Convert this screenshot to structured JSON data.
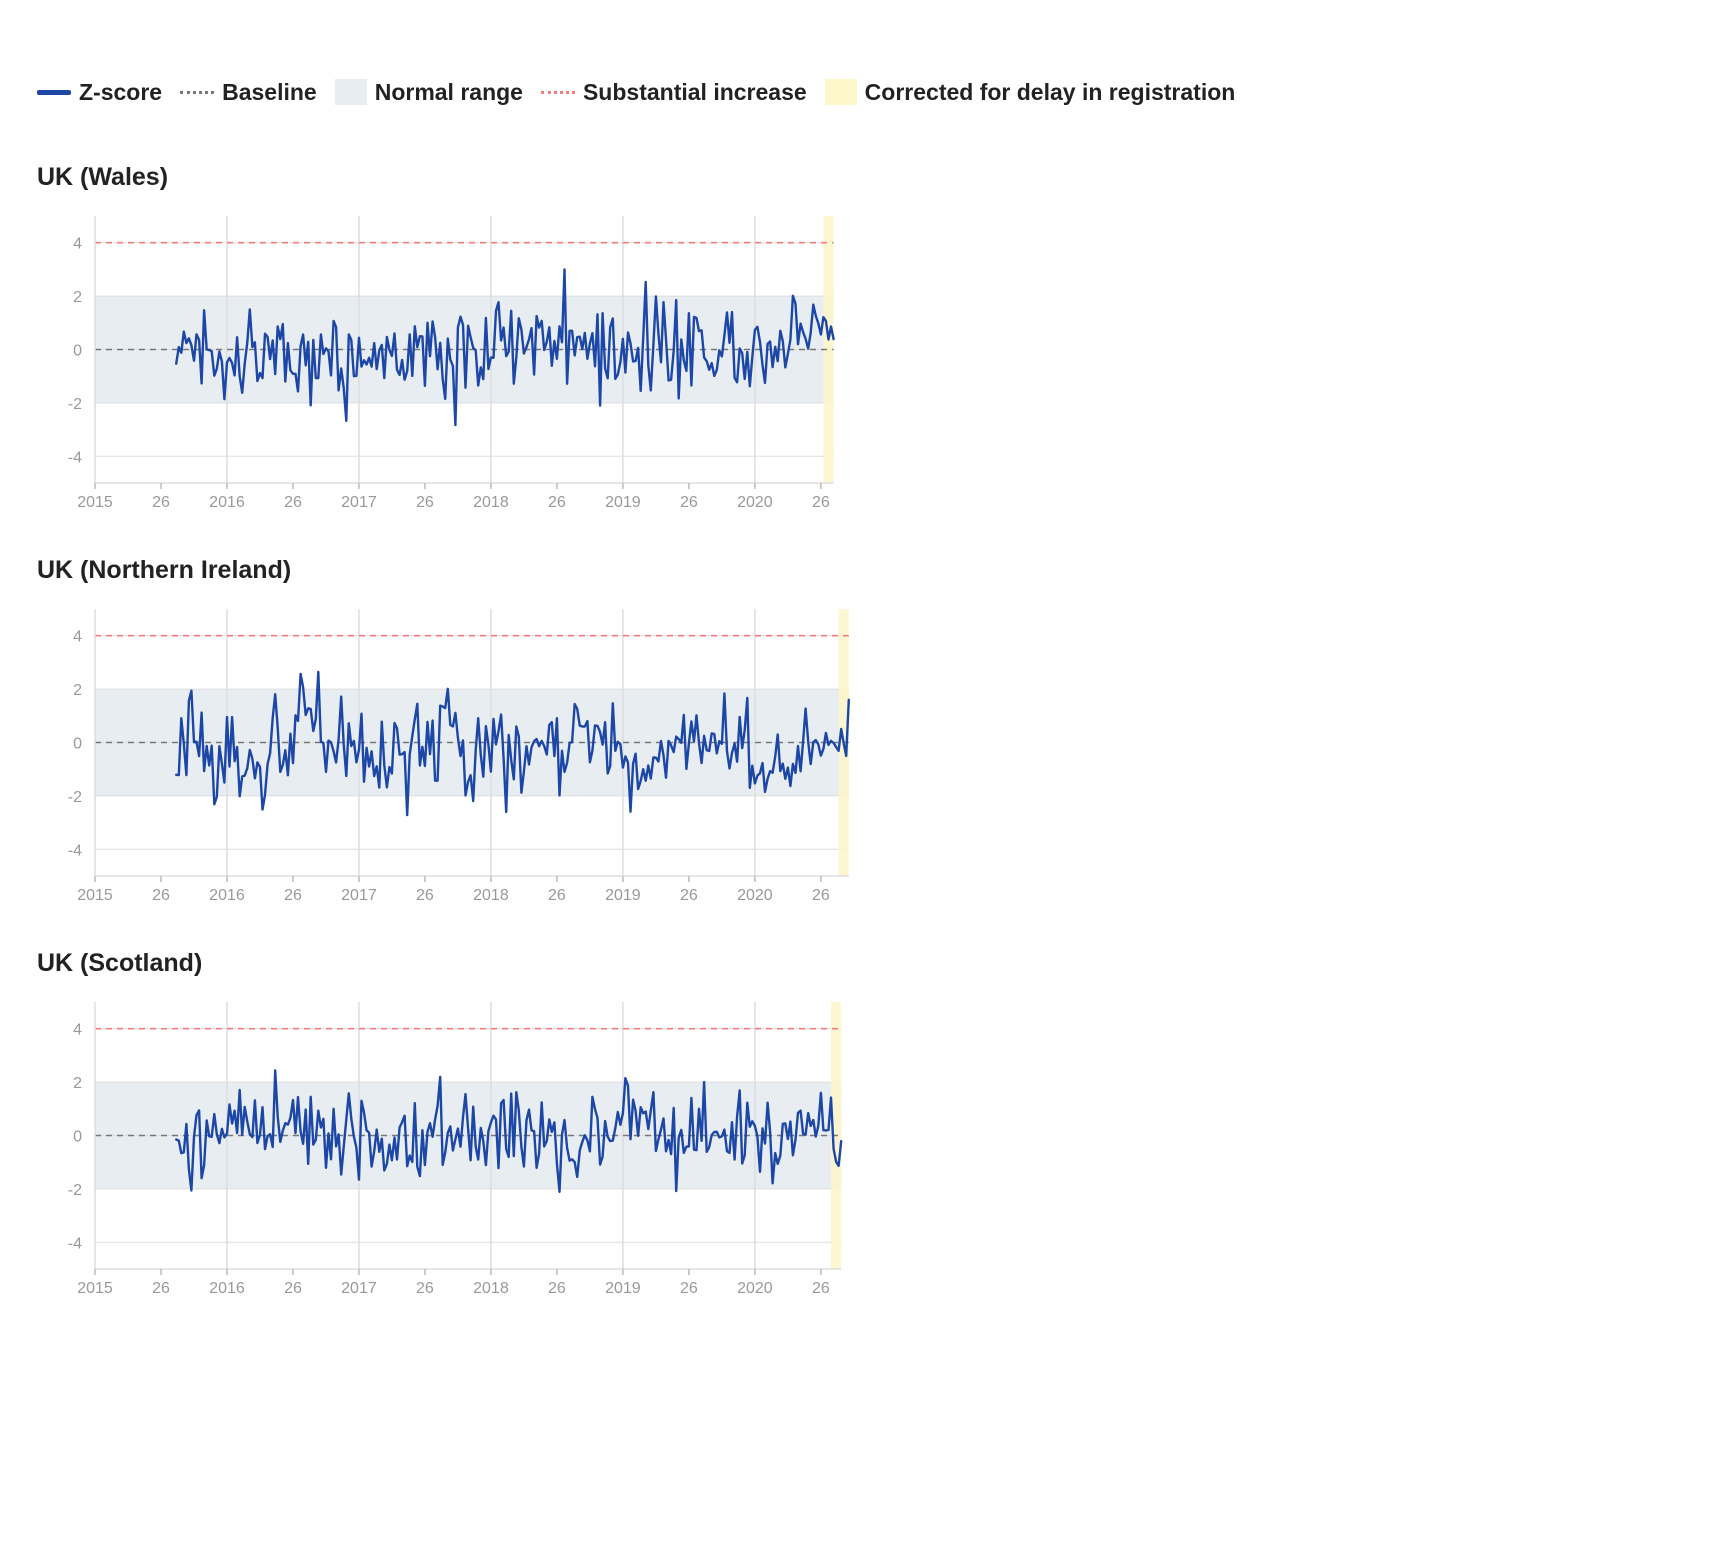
{
  "legend": {
    "zscore": "Z-score",
    "baseline": "Baseline",
    "normal_range": "Normal range",
    "substantial_increase": "Substantial increase",
    "corrected": "Corrected for delay in registration"
  },
  "colors": {
    "zscore": "#1c47a7",
    "baseline": "#777777",
    "normal_range": "#e8edf2",
    "substantial_increase": "#f57c7c",
    "corrected": "#fdf6c9",
    "grid": "#dddddd"
  },
  "chart_data": [
    {
      "type": "line",
      "title": "UK (Wales)",
      "x_ticks": [
        "2015",
        "26",
        "2016",
        "26",
        "2017",
        "26",
        "2018",
        "26",
        "2019",
        "26",
        "2020",
        "26"
      ],
      "ylim": [
        -5,
        5
      ],
      "y_ticks": [
        4,
        2,
        0,
        -2,
        -4
      ],
      "baseline": 0,
      "normal_range": [
        -2,
        2
      ],
      "substantial_increase": 4,
      "corrected_weeks_from_end": 4,
      "x_start_week": 32,
      "series": [
        {
          "values": [
            -0.53,
            0.09,
            -0.12,
            0.67,
            0.24,
            0.42,
            0.16,
            -0.42,
            0.57,
            0.36,
            -1.27,
            1.47,
            0.0,
            -0.02,
            -0.06,
            -0.98,
            -0.72,
            -0.08,
            -0.45,
            -1.86,
            -0.48,
            -0.32,
            -0.51,
            -0.97,
            0.46,
            -1.01,
            -1.62,
            -0.54,
            0.27,
            1.5,
            0.09,
            0.27,
            -1.18,
            -0.88,
            -1.07,
            0.59,
            0.47,
            -0.36,
            0.34,
            -0.92,
            0.86,
            0.39,
            0.95,
            -1.2,
            0.24,
            -0.78,
            -0.91,
            -0.91,
            -1.57,
            0.13,
            0.56,
            -0.59,
            0.29,
            -2.09,
            0.36,
            -1.07,
            -1.07,
            0.56,
            -0.17,
            0.04,
            -0.07,
            -0.97,
            1.07,
            0.84,
            -1.53,
            -0.71,
            -1.43,
            -2.67,
            0.56,
            0.36,
            -1.0,
            -0.99,
            0.44,
            -0.64,
            -0.4,
            -0.56,
            -0.31,
            -0.64,
            0.24,
            -0.73,
            -0.03,
            0.17,
            -1.07,
            0.47,
            -0.01,
            -0.24,
            0.6,
            -0.76,
            -0.95,
            -0.39,
            -1.13,
            -0.8,
            0.57,
            -0.99,
            0.87,
            0.09,
            0.5,
            0.49,
            -1.36,
            1.0,
            -0.25,
            1.05,
            0.46,
            -0.74,
            0.25,
            -1.11,
            -1.85,
            0.41,
            -0.38,
            -0.62,
            -2.83,
            0.82,
            1.23,
            0.92,
            -1.43,
            0.89,
            0.46,
            0.06,
            -0.03,
            -1.35,
            -0.67,
            -1.11,
            1.18,
            -0.73,
            -0.3,
            -0.31,
            1.45,
            1.77,
            0.34,
            0.82,
            -0.25,
            -0.08,
            1.45,
            -1.28,
            -0.3,
            1.17,
            0.74,
            -0.15,
            0.09,
            0.38,
            0.8,
            -0.94,
            1.25,
            0.82,
            1.07,
            -0.02,
            0.29,
            0.83,
            -0.61,
            0.32,
            -0.35,
            0.87,
            0.27,
            3.0,
            -1.28,
            0.7,
            0.7,
            -0.22,
            0.46,
            0.48,
            0.02,
            0.62,
            -0.35,
            0.22,
            0.61,
            -0.63,
            1.32,
            -2.1,
            1.36,
            -0.71,
            -1.08,
            0.83,
            1.16,
            -1.1,
            -0.94,
            -0.47,
            0.4,
            -0.86,
            0.64,
            0.23,
            -0.45,
            -0.43,
            0.06,
            -1.55,
            0.43,
            2.53,
            -0.59,
            -1.53,
            0.18,
            1.99,
            0.61,
            -0.48,
            1.77,
            0.39,
            -1.16,
            -1.13,
            -0.04,
            1.85,
            -1.83,
            0.38,
            -0.4,
            -0.8,
            1.36,
            -1.35,
            1.22,
            1.18,
            0.69,
            0.72,
            -0.3,
            -0.44,
            -0.76,
            -0.51,
            -0.99,
            -0.76,
            -0.03,
            -0.26,
            0.53,
            1.39,
            0.25,
            1.4,
            -1.06,
            -1.23,
            0.04,
            -0.14,
            -1.1,
            -0.09,
            -1.38,
            -0.28,
            0.73,
            0.85,
            0.28,
            -0.58,
            -1.25,
            0.21,
            0.3,
            -0.66,
            0.1,
            -0.44,
            0.7,
            0.31,
            -0.67,
            -0.16,
            0.37,
            2.01,
            1.71,
            0.2,
            0.97,
            0.65,
            0.4,
            0.03,
            0.63,
            1.68,
            1.26,
            0.98,
            0.56,
            1.21,
            1.07,
            0.38,
            0.86,
            0.39
          ]
        }
      ]
    },
    {
      "type": "line",
      "title": "UK (Northern Ireland)",
      "x_ticks": [
        "2015",
        "26",
        "2016",
        "26",
        "2017",
        "26",
        "2018",
        "26",
        "2019",
        "26",
        "2020",
        "26"
      ],
      "ylim": [
        -5,
        5
      ],
      "y_ticks": [
        4,
        2,
        0,
        -2,
        -4
      ],
      "baseline": 0,
      "normal_range": [
        -2,
        2
      ],
      "substantial_increase": 4,
      "corrected_weeks_from_end": 4,
      "x_start_week": 32,
      "series": [
        {
          "values": [
            -1.21,
            -1.22,
            0.91,
            -0.04,
            -1.22,
            1.56,
            1.94,
            0.01,
            0.03,
            -0.51,
            1.12,
            -1.07,
            -0.13,
            -0.86,
            -0.12,
            -2.31,
            -2.04,
            -0.14,
            -0.79,
            -1.5,
            0.95,
            -0.9,
            0.95,
            -0.7,
            -0.17,
            -2.01,
            -1.27,
            -1.24,
            -0.96,
            -0.28,
            -0.61,
            -1.34,
            -0.74,
            -0.92,
            -2.51,
            -1.96,
            -0.8,
            -0.41,
            0.92,
            1.81,
            0.55,
            -1.1,
            -0.84,
            -0.29,
            -1.23,
            0.33,
            -0.77,
            1.02,
            0.81,
            2.57,
            2.07,
            1.03,
            1.28,
            1.26,
            0.43,
            0.88,
            2.64,
            0.03,
            -0.02,
            -1.1,
            0.07,
            0.01,
            -0.33,
            -0.75,
            0.12,
            1.72,
            -0.06,
            -1.25,
            0.72,
            -0.13,
            0.06,
            -0.74,
            -0.27,
            1.08,
            -1.47,
            -0.2,
            -0.9,
            -0.33,
            -1.26,
            -0.89,
            -1.69,
            0.78,
            -0.86,
            -1.68,
            -0.92,
            -1.16,
            0.73,
            0.53,
            -0.45,
            -0.44,
            -0.36,
            -2.72,
            -0.45,
            0.24,
            0.87,
            1.45,
            -0.86,
            -0.16,
            -0.88,
            0.77,
            -0.44,
            0.82,
            -1.43,
            -1.43,
            1.38,
            1.35,
            1.29,
            2.01,
            0.66,
            0.6,
            1.11,
            0.18,
            -0.51,
            0.08,
            -1.98,
            -1.47,
            -1.23,
            -2.19,
            -0.29,
            0.91,
            -0.48,
            -1.28,
            0.61,
            -0.08,
            -1.09,
            0.88,
            -0.07,
            0.42,
            1.05,
            -0.6,
            -2.6,
            0.28,
            -0.65,
            -1.38,
            0.6,
            0.23,
            -1.88,
            -1.09,
            -0.14,
            -0.82,
            -0.18,
            0.05,
            0.13,
            -0.14,
            0.06,
            -0.13,
            -0.45,
            0.66,
            0.76,
            -0.51,
            0.91,
            -1.98,
            -0.31,
            -1.1,
            -0.76,
            -0.02,
            0.02,
            1.44,
            1.26,
            0.63,
            0.6,
            0.6,
            0.8,
            -0.74,
            -0.31,
            0.64,
            0.62,
            0.39,
            -0.08,
            0.76,
            -1.16,
            -0.88,
            1.47,
            -0.31,
            0.03,
            -0.06,
            -0.94,
            -0.52,
            -0.75,
            -2.59,
            -0.79,
            -0.42,
            -1.74,
            -1.44,
            -1.0,
            -1.43,
            -0.86,
            -1.35,
            -0.56,
            -0.57,
            -0.71,
            0.06,
            -0.48,
            -1.32,
            0.06,
            -0.11,
            -0.36,
            0.22,
            0.13,
            -0.01,
            1.03,
            -0.99,
            -0.03,
            0.79,
            0.05,
            1.02,
            -0.02,
            -0.77,
            0.25,
            -0.29,
            -0.32,
            0.34,
            0.32,
            -0.41,
            0.05,
            -0.05,
            1.84,
            -0.33,
            -0.97,
            -0.39,
            -0.04,
            -0.72,
            0.96,
            -0.21,
            0.46,
            1.67,
            -1.7,
            -0.87,
            -1.53,
            -1.24,
            -1.15,
            -0.77,
            -1.85,
            -1.36,
            -1.07,
            -1.13,
            -0.53,
            0.3,
            -1.07,
            -0.79,
            -1.36,
            -0.94,
            -1.63,
            -0.8,
            -1.14,
            -0.13,
            -1.08,
            0.04,
            1.27,
            0.03,
            -0.81,
            0.01,
            0.09,
            -0.07,
            -0.49,
            -0.24,
            0.36,
            -0.09,
            0.06,
            -0.02,
            -0.17,
            -0.31,
            0.51,
            -0.03,
            -0.5,
            1.6
          ]
        }
      ]
    },
    {
      "type": "line",
      "title": "UK (Scotland)",
      "x_ticks": [
        "2015",
        "26",
        "2016",
        "26",
        "2017",
        "26",
        "2018",
        "26",
        "2019",
        "26",
        "2020",
        "26"
      ],
      "ylim": [
        -5,
        5
      ],
      "y_ticks": [
        4,
        2,
        0,
        -2,
        -4
      ],
      "baseline": 0,
      "normal_range": [
        -2,
        2
      ],
      "substantial_increase": 4,
      "corrected_weeks_from_end": 4,
      "x_start_week": 32,
      "series": [
        {
          "values": [
            -0.15,
            -0.19,
            -0.66,
            -0.63,
            0.43,
            -1.27,
            -2.06,
            -0.05,
            0.76,
            0.94,
            -1.6,
            -1.12,
            0.56,
            -0.03,
            -0.05,
            0.8,
            0.05,
            -0.29,
            0.25,
            -0.07,
            0.07,
            1.16,
            0.45,
            0.93,
            0.09,
            1.7,
            0.03,
            1.07,
            0.52,
            0.05,
            -0.06,
            1.32,
            -0.28,
            0.03,
            1.06,
            -0.51,
            -0.02,
            0.05,
            -0.43,
            2.44,
            0.71,
            -0.24,
            0.18,
            0.46,
            0.41,
            0.66,
            1.33,
            0.09,
            1.44,
            0.15,
            -0.31,
            0.97,
            -1.06,
            1.45,
            -0.34,
            -0.16,
            0.93,
            0.3,
            0.62,
            -1.21,
            0.08,
            -0.89,
            1.0,
            -0.41,
            0.04,
            -1.46,
            -0.43,
            0.6,
            1.58,
            0.63,
            -0.04,
            -0.46,
            -1.65,
            1.3,
            0.86,
            0.19,
            0.11,
            -1.16,
            -0.59,
            0.22,
            -0.61,
            -0.12,
            -1.31,
            -1.06,
            -0.34,
            -0.93,
            -0.08,
            -0.9,
            0.3,
            0.5,
            0.74,
            -1.15,
            -0.75,
            -0.99,
            1.21,
            -1.17,
            -1.52,
            0.2,
            -1.11,
            0.14,
            0.46,
            -0.05,
            0.6,
            1.11,
            2.2,
            -1.1,
            -0.64,
            0.1,
            0.34,
            -0.56,
            -0.14,
            0.26,
            -0.42,
            0.68,
            1.55,
            0.26,
            -0.93,
            1.08,
            -0.42,
            -0.9,
            0.28,
            -0.22,
            -1.11,
            0.16,
            0.48,
            0.74,
            0.6,
            -1.22,
            1.21,
            1.33,
            -0.5,
            -0.8,
            1.57,
            -0.77,
            1.62,
            0.94,
            -0.43,
            -1.16,
            0.58,
            0.97,
            0.19,
            0.16,
            -1.21,
            -0.67,
            1.24,
            -0.41,
            -0.2,
            0.6,
            0.14,
            0.49,
            -1.04,
            -2.11,
            0.03,
            0.58,
            -0.46,
            -0.94,
            -0.89,
            -1.0,
            -1.55,
            -0.55,
            -0.24,
            0.01,
            -0.18,
            -0.59,
            1.45,
            0.99,
            0.65,
            -1.09,
            -0.79,
            0.54,
            -0.05,
            -0.21,
            -0.19,
            0.27,
            0.88,
            0.4,
            0.83,
            2.15,
            1.86,
            -0.14,
            1.34,
            0.92,
            -0.01,
            1.06,
            0.83,
            0.9,
            0.24,
            0.93,
            1.62,
            -0.58,
            -0.15,
            0.22,
            0.64,
            -0.59,
            -0.17,
            -0.7,
            1.03,
            -2.08,
            -0.08,
            0.21,
            -0.65,
            -0.42,
            -0.41,
            1.41,
            -0.53,
            -0.55,
            1.0,
            -0.2,
            2.0,
            -0.61,
            -0.44,
            0.02,
            0.13,
            0.14,
            -0.07,
            -0.03,
            0.22,
            -0.59,
            -0.65,
            0.5,
            -0.9,
            0.71,
            1.69,
            -1.05,
            -0.74,
            1.23,
            0.33,
            0.53,
            0.36,
            -0.03,
            -1.36,
            0.27,
            -0.3,
            1.23,
            0.14,
            -1.79,
            -0.66,
            -1.06,
            -0.76,
            0.44,
            0.45,
            -0.13,
            0.52,
            -0.74,
            -0.15,
            0.85,
            0.93,
            0.06,
            0.03,
            0.84,
            0.36,
            0.58,
            -0.04,
            0.36,
            1.6,
            0.2,
            0.19,
            0.21,
            1.42,
            -0.5,
            -0.98,
            -1.14,
            -0.21
          ]
        }
      ]
    }
  ]
}
